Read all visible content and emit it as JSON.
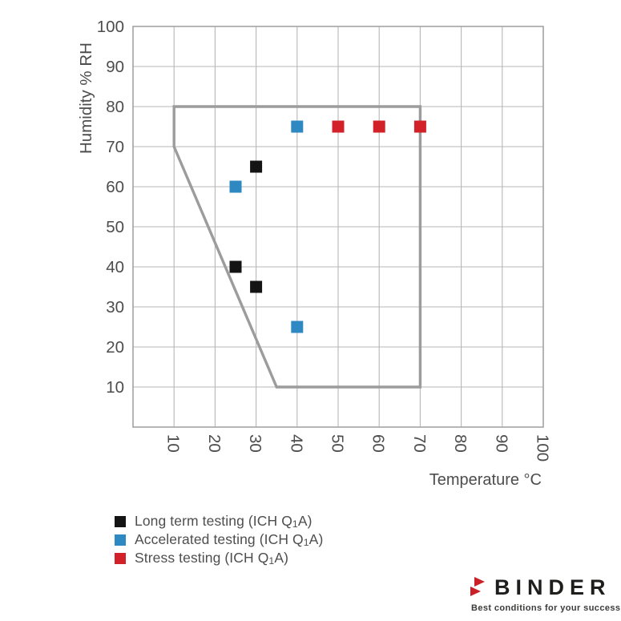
{
  "chart_data": {
    "type": "scatter",
    "title": "",
    "xlabel": "Temperature °C",
    "ylabel": "Humidity % RH",
    "xlim": [
      0,
      100
    ],
    "ylim": [
      0,
      100
    ],
    "xticks": [
      10,
      20,
      30,
      40,
      50,
      60,
      70,
      80,
      90,
      100
    ],
    "yticks": [
      10,
      20,
      30,
      40,
      50,
      60,
      70,
      80,
      90,
      100
    ],
    "grid": true,
    "grid_color": "#b7b7b7",
    "border_color": "#a3a3a3",
    "tick_color": "#4d4d4d",
    "axis_label_color": "#4d4d4d",
    "marker": "square",
    "marker_size": 15,
    "envelope": {
      "name": "chamber-operating-range",
      "color": "#9c9c9c",
      "points": [
        [
          10,
          70
        ],
        [
          10,
          80
        ],
        [
          70,
          80
        ],
        [
          70,
          10
        ],
        [
          35,
          10
        ]
      ]
    },
    "series": [
      {
        "name": "Long term testing (ICH Q1A)",
        "color": "#141414",
        "points": [
          [
            25,
            40
          ],
          [
            30,
            35
          ],
          [
            30,
            65
          ]
        ]
      },
      {
        "name": "Accelerated testing (ICH Q1A)",
        "color": "#2e89c2",
        "points": [
          [
            25,
            60
          ],
          [
            40,
            25
          ],
          [
            40,
            75
          ]
        ]
      },
      {
        "name": "Stress testing (ICH Q1A)",
        "color": "#d22128",
        "points": [
          [
            50,
            75
          ],
          [
            60,
            75
          ],
          [
            70,
            75
          ]
        ]
      }
    ],
    "legend_position": "bottom-left"
  },
  "legend": {
    "items": [
      {
        "color": "#141414",
        "label_pre": "Long term testing (ICH Q",
        "label_sub": "1",
        "label_post": "A)"
      },
      {
        "color": "#2e89c2",
        "label_pre": "Accelerated testing (ICH Q",
        "label_sub": "1",
        "label_post": "A)"
      },
      {
        "color": "#d22128",
        "label_pre": "Stress testing (ICH Q",
        "label_sub": "1",
        "label_post": "A)"
      }
    ]
  },
  "branding": {
    "name": "BINDER",
    "tagline": "Best conditions for your success",
    "accent_color": "#cb2027",
    "text_color": "#1e1e1c"
  }
}
